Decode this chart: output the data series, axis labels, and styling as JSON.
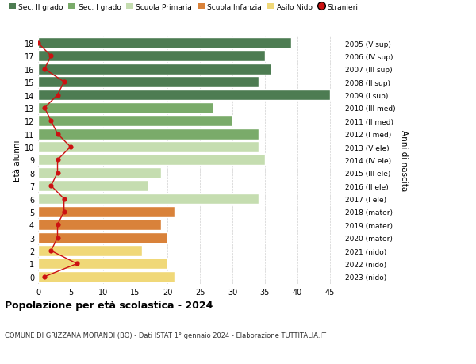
{
  "ages": [
    18,
    17,
    16,
    15,
    14,
    13,
    12,
    11,
    10,
    9,
    8,
    7,
    6,
    5,
    4,
    3,
    2,
    1,
    0
  ],
  "bar_values": [
    39,
    35,
    36,
    34,
    45,
    27,
    30,
    34,
    34,
    35,
    19,
    17,
    34,
    21,
    19,
    20,
    16,
    20,
    21
  ],
  "stranieri": [
    0,
    2,
    1,
    4,
    3,
    1,
    2,
    3,
    5,
    3,
    3,
    2,
    4,
    4,
    3,
    3,
    2,
    6,
    1
  ],
  "right_labels": [
    "2005 (V sup)",
    "2006 (IV sup)",
    "2007 (III sup)",
    "2008 (II sup)",
    "2009 (I sup)",
    "2010 (III med)",
    "2011 (II med)",
    "2012 (I med)",
    "2013 (V ele)",
    "2014 (IV ele)",
    "2015 (III ele)",
    "2016 (II ele)",
    "2017 (I ele)",
    "2018 (mater)",
    "2019 (mater)",
    "2020 (mater)",
    "2021 (nido)",
    "2022 (nido)",
    "2023 (nido)"
  ],
  "bar_colors": [
    "#4d7c52",
    "#4d7c52",
    "#4d7c52",
    "#4d7c52",
    "#4d7c52",
    "#7aab6a",
    "#7aab6a",
    "#7aab6a",
    "#c5ddb0",
    "#c5ddb0",
    "#c5ddb0",
    "#c5ddb0",
    "#c5ddb0",
    "#d9823a",
    "#d9823a",
    "#d9823a",
    "#f0d878",
    "#f0d878",
    "#f0d878"
  ],
  "legend_labels": [
    "Sec. II grado",
    "Sec. I grado",
    "Scuola Primaria",
    "Scuola Infanzia",
    "Asilo Nido",
    "Stranieri"
  ],
  "legend_colors": [
    "#4d7c52",
    "#7aab6a",
    "#c5ddb0",
    "#d9823a",
    "#f0d878",
    "#cc1111"
  ],
  "ylabel_left": "Età alunni",
  "ylabel_right": "Anni di nascita",
  "title": "Popolazione per età scolastica - 2024",
  "subtitle": "COMUNE DI GRIZZANA MORANDI (BO) - Dati ISTAT 1° gennaio 2024 - Elaborazione TUTTITALIA.IT",
  "xlim": [
    0,
    47
  ],
  "xticks": [
    0,
    5,
    10,
    15,
    20,
    25,
    30,
    35,
    40,
    45
  ],
  "stranieri_color": "#cc1111",
  "bg_color": "#ffffff",
  "bar_edge_color": "#ffffff",
  "grid_color": "#d0d0d0"
}
